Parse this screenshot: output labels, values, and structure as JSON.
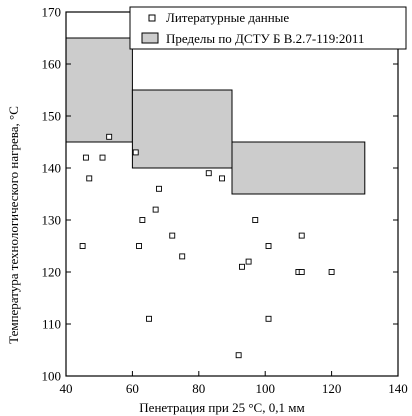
{
  "chart_data": {
    "type": "scatter",
    "xlabel": "Пенетрация при 25 °С, 0,1 мм",
    "ylabel": "Температура технологического нагрева, °С",
    "xlim": [
      40,
      140
    ],
    "ylim": [
      100,
      170
    ],
    "xticks": [
      40,
      60,
      80,
      100,
      120,
      140
    ],
    "yticks": [
      100,
      110,
      120,
      130,
      140,
      150,
      160,
      170
    ],
    "grid": false,
    "legend_position": "top-right",
    "series": [
      {
        "name": "Литературные данные",
        "marker": "open-square",
        "points": [
          [
            45,
            125
          ],
          [
            46,
            142
          ],
          [
            47,
            138
          ],
          [
            51,
            142
          ],
          [
            53,
            146
          ],
          [
            61,
            143
          ],
          [
            62,
            125
          ],
          [
            63,
            130
          ],
          [
            65,
            111
          ],
          [
            67,
            132
          ],
          [
            68,
            136
          ],
          [
            72,
            127
          ],
          [
            75,
            123
          ],
          [
            83,
            139
          ],
          [
            87,
            138
          ],
          [
            92,
            104
          ],
          [
            93,
            121
          ],
          [
            95,
            122
          ],
          [
            97,
            130
          ],
          [
            101,
            125
          ],
          [
            101,
            111
          ],
          [
            110,
            120
          ],
          [
            111,
            120
          ],
          [
            111,
            127
          ],
          [
            120,
            120
          ]
        ]
      }
    ],
    "bands": {
      "name": "Пределы по ДСТУ Б В.2.7-119:2011",
      "fill": "#cccccc",
      "ranges": [
        {
          "x": [
            40,
            60
          ],
          "y": [
            145,
            165
          ]
        },
        {
          "x": [
            60,
            90
          ],
          "y": [
            140,
            155
          ]
        },
        {
          "x": [
            90,
            130
          ],
          "y": [
            135,
            145
          ]
        }
      ]
    }
  }
}
